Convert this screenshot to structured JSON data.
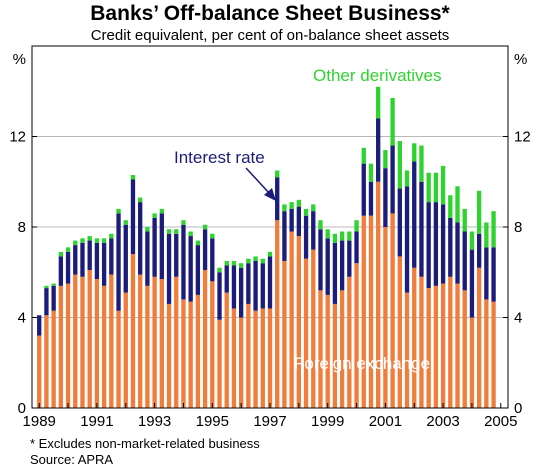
{
  "chart_data": {
    "type": "bar",
    "stacked": true,
    "title": "Banks’ Off-balance Sheet Business*",
    "subtitle": "Credit equivalent, per cent of on-balance sheet assets",
    "y_unit_label": "%",
    "ylim": [
      0,
      16
    ],
    "y_ticks": [
      0,
      4,
      8,
      12
    ],
    "xlim": [
      1988.75,
      2005.25
    ],
    "x_tick_labels": [
      "1989",
      "1991",
      "1993",
      "1995",
      "1997",
      "1999",
      "2001",
      "2003",
      "2005"
    ],
    "x_tick_values": [
      1989,
      1991,
      1993,
      1995,
      1997,
      1999,
      2001,
      2003,
      2005
    ],
    "grid": true,
    "x": [
      1989.0,
      1989.25,
      1989.5,
      1989.75,
      1990.0,
      1990.25,
      1990.5,
      1990.75,
      1991.0,
      1991.25,
      1991.5,
      1991.75,
      1992.0,
      1992.25,
      1992.5,
      1992.75,
      1993.0,
      1993.25,
      1993.5,
      1993.75,
      1994.0,
      1994.25,
      1994.5,
      1994.75,
      1995.0,
      1995.25,
      1995.5,
      1995.75,
      1996.0,
      1996.25,
      1996.5,
      1996.75,
      1997.0,
      1997.25,
      1997.5,
      1997.75,
      1998.0,
      1998.25,
      1998.5,
      1998.75,
      1999.0,
      1999.25,
      1999.5,
      1999.75,
      2000.0,
      2000.25,
      2000.5,
      2000.75,
      2001.0,
      2001.25,
      2001.5,
      2001.75,
      2002.0,
      2002.25,
      2002.5,
      2002.75,
      2003.0,
      2003.25,
      2003.5,
      2003.75,
      2004.0,
      2004.25,
      2004.5,
      2004.75
    ],
    "series": [
      {
        "name": "Foreign exchange",
        "color": "#f07d3c",
        "values": [
          3.2,
          4.1,
          4.3,
          5.4,
          5.5,
          5.9,
          5.8,
          6.1,
          5.7,
          5.4,
          5.9,
          4.3,
          5.1,
          6.8,
          5.9,
          5.4,
          5.8,
          5.7,
          4.6,
          5.8,
          4.8,
          4.7,
          5.0,
          6.1,
          5.6,
          3.9,
          5.1,
          4.4,
          4.0,
          4.6,
          4.3,
          4.4,
          4.4,
          8.3,
          6.5,
          7.8,
          7.6,
          6.6,
          7.0,
          5.2,
          5.0,
          4.6,
          5.2,
          5.8,
          6.4,
          8.5,
          8.5,
          10.0,
          8.0,
          8.6,
          6.7,
          5.1,
          6.2,
          5.8,
          5.3,
          5.4,
          5.5,
          5.8,
          5.5,
          5.2,
          4.0,
          6.2,
          4.8,
          4.7
        ]
      },
      {
        "name": "Interest rate",
        "color": "#1c1c7a",
        "values": [
          0.9,
          1.2,
          1.1,
          1.3,
          1.4,
          1.3,
          1.5,
          1.3,
          1.6,
          1.9,
          1.6,
          4.3,
          3.0,
          3.3,
          3.2,
          2.4,
          2.6,
          2.9,
          3.1,
          1.9,
          3.3,
          2.9,
          2.2,
          1.8,
          1.9,
          2.1,
          1.2,
          1.9,
          2.2,
          1.8,
          2.2,
          2.0,
          2.3,
          1.9,
          2.2,
          1.0,
          1.3,
          1.9,
          1.7,
          2.7,
          2.5,
          2.7,
          2.2,
          1.6,
          1.4,
          2.3,
          1.5,
          2.8,
          2.6,
          3.0,
          3.0,
          4.7,
          4.7,
          4.2,
          3.8,
          3.7,
          3.5,
          2.6,
          2.7,
          2.6,
          3.0,
          1.5,
          2.3,
          2.4
        ]
      },
      {
        "name": "Other derivatives",
        "color": "#2fd32f",
        "values": [
          0.0,
          0.1,
          0.1,
          0.2,
          0.2,
          0.2,
          0.2,
          0.2,
          0.2,
          0.2,
          0.2,
          0.2,
          0.2,
          0.2,
          0.2,
          0.2,
          0.2,
          0.2,
          0.2,
          0.2,
          0.2,
          0.2,
          0.2,
          0.2,
          0.2,
          0.2,
          0.2,
          0.2,
          0.2,
          0.2,
          0.2,
          0.2,
          0.2,
          0.3,
          0.3,
          0.3,
          0.3,
          0.3,
          0.3,
          0.4,
          0.4,
          0.4,
          0.4,
          0.4,
          0.5,
          0.7,
          0.8,
          1.4,
          0.8,
          2.1,
          2.1,
          0.7,
          0.8,
          1.6,
          1.3,
          1.3,
          1.7,
          1.0,
          1.6,
          1.0,
          0.8,
          1.9,
          1.1,
          1.6
        ]
      }
    ],
    "annotations": [
      {
        "text": "Other derivatives",
        "color": "#2fd32f"
      },
      {
        "text": "Interest rate",
        "color": "#1c1c7a"
      },
      {
        "text": "Foreign exchange",
        "color": "#f07d3c"
      }
    ]
  },
  "footnote": "* Excludes non-market-related business",
  "source": "Source: APRA"
}
